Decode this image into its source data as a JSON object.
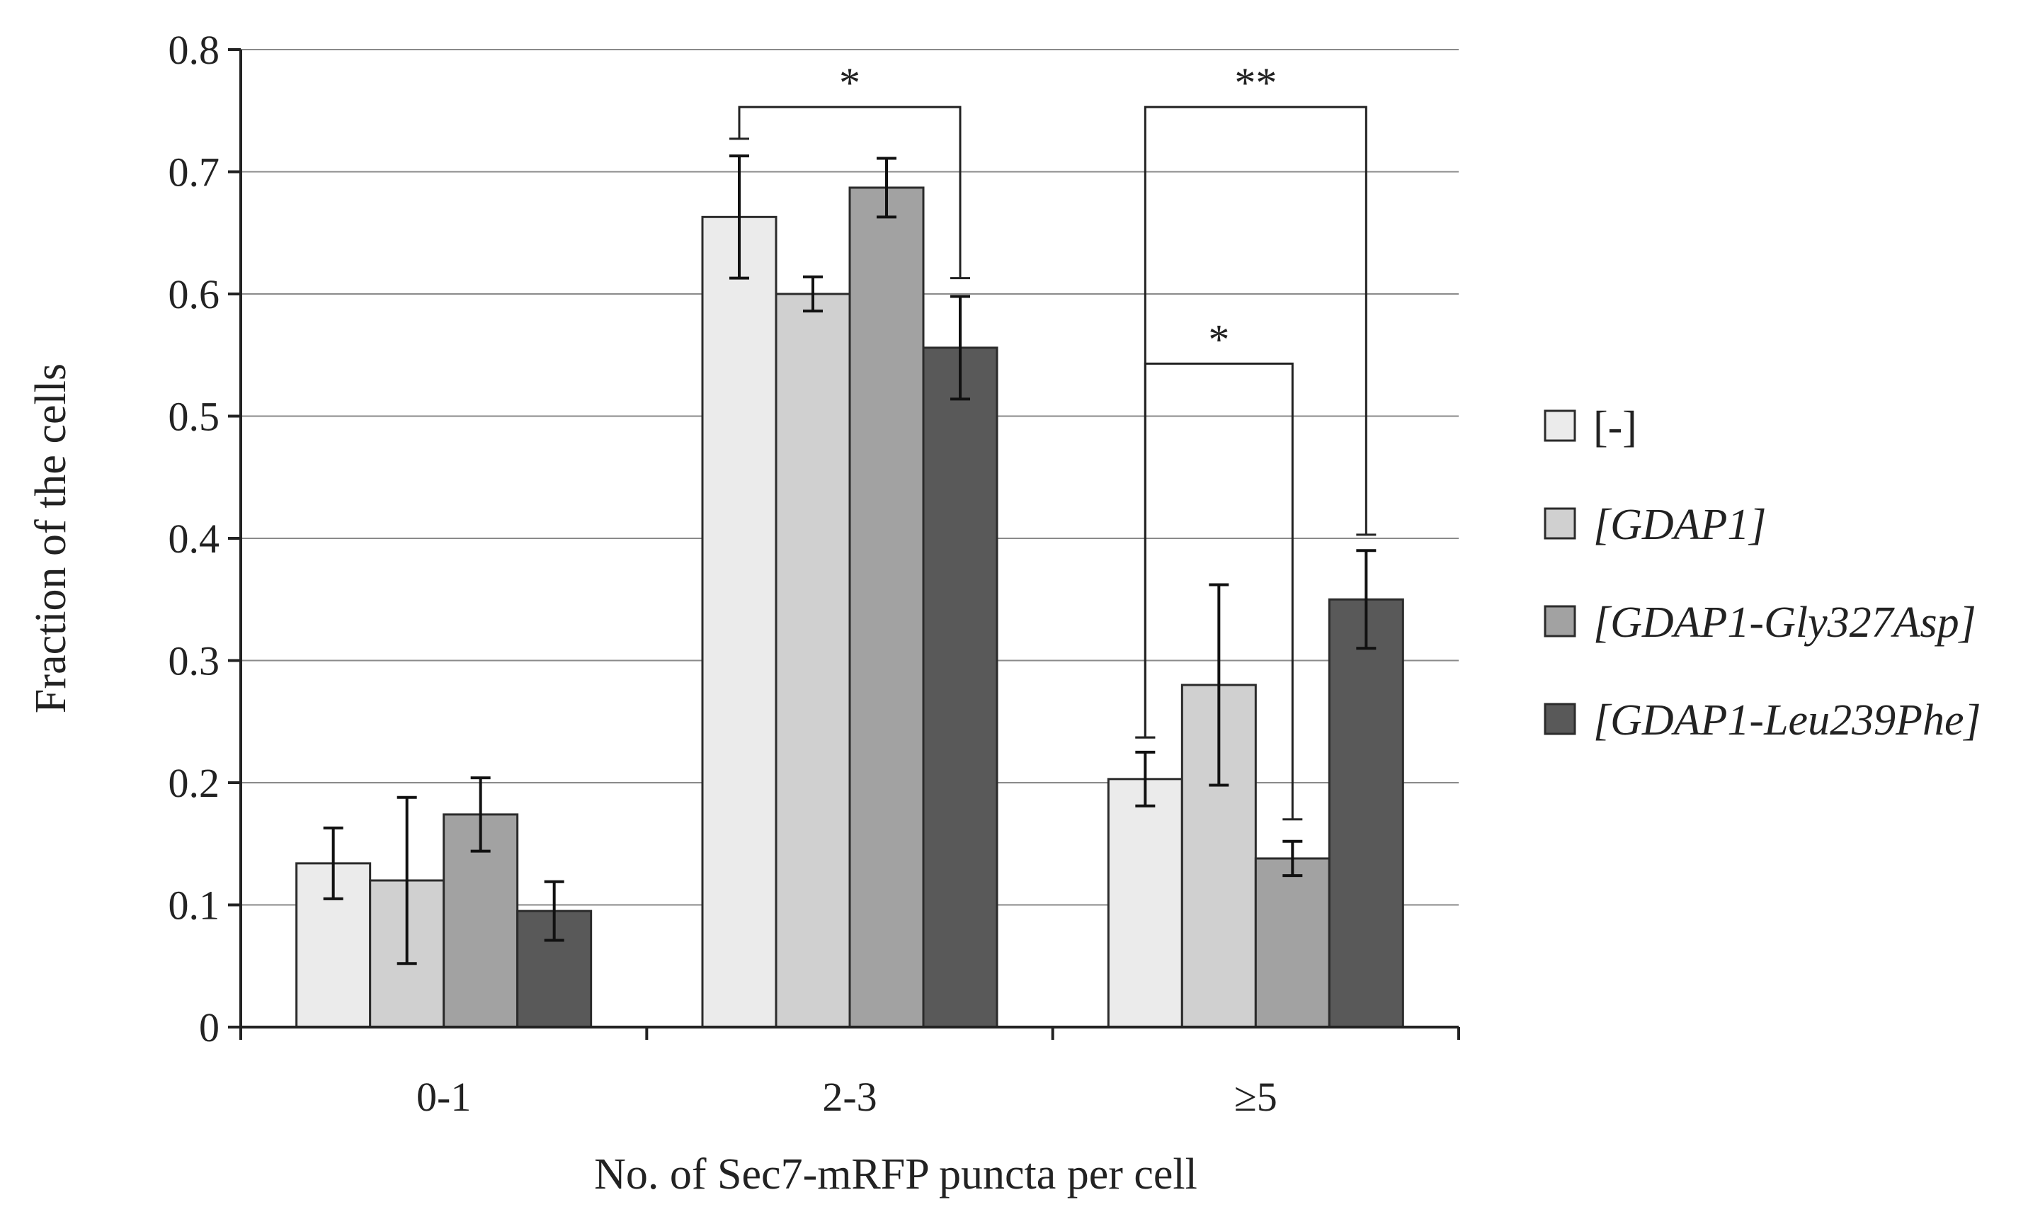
{
  "chart_data": {
    "type": "bar",
    "title": "",
    "xlabel": "No. of Sec7-mRFP puncta per cell",
    "ylabel": "Fraction of the cells",
    "ylim": [
      0,
      0.8
    ],
    "yticks": [
      0,
      0.1,
      0.2,
      0.3,
      0.4,
      0.5,
      0.6,
      0.7,
      0.8
    ],
    "ytick_labels": [
      "0",
      "0.1",
      "0.2",
      "0.3",
      "0.4",
      "0.5",
      "0.6",
      "0.7",
      "0.8"
    ],
    "grid": true,
    "legend_position": "right",
    "categories": [
      "0-1",
      "2-3",
      "≥5"
    ],
    "series": [
      {
        "name": "[-]",
        "italic": false,
        "color": "#ebebeb",
        "values": [
          0.134,
          0.663,
          0.203
        ],
        "errors": [
          0.029,
          0.05,
          0.022
        ]
      },
      {
        "name": "[GDAP1]",
        "italic": true,
        "color": "#d0d0d0",
        "values": [
          0.12,
          0.6,
          0.28
        ],
        "errors": [
          0.068,
          0.014,
          0.082
        ]
      },
      {
        "name": "[GDAP1-Gly327Asp]",
        "italic": true,
        "color": "#a2a2a2",
        "values": [
          0.174,
          0.687,
          0.138
        ],
        "errors": [
          0.03,
          0.024,
          0.014
        ]
      },
      {
        "name": "[GDAP1-Leu239Phe]",
        "italic": true,
        "color": "#595959",
        "values": [
          0.095,
          0.556,
          0.35
        ],
        "errors": [
          0.024,
          0.042,
          0.04
        ]
      }
    ],
    "significance": [
      {
        "label": "*",
        "category_left": 1,
        "series_left": 0,
        "category_right": 1,
        "series_right": 3,
        "bar_level": 0.753,
        "left_foot": 0.727,
        "right_foot": 0.613
      },
      {
        "label": "**",
        "category_left": 2,
        "series_left": 0,
        "category_right": 2,
        "series_right": 3,
        "bar_level": 0.753,
        "left_foot": 0.237,
        "right_foot": 0.403
      },
      {
        "label": "*",
        "category_left": 2,
        "series_left": 0,
        "category_right": 2,
        "series_right": 2,
        "bar_level": 0.543,
        "left_foot": 0.237,
        "right_foot": 0.17
      }
    ]
  }
}
